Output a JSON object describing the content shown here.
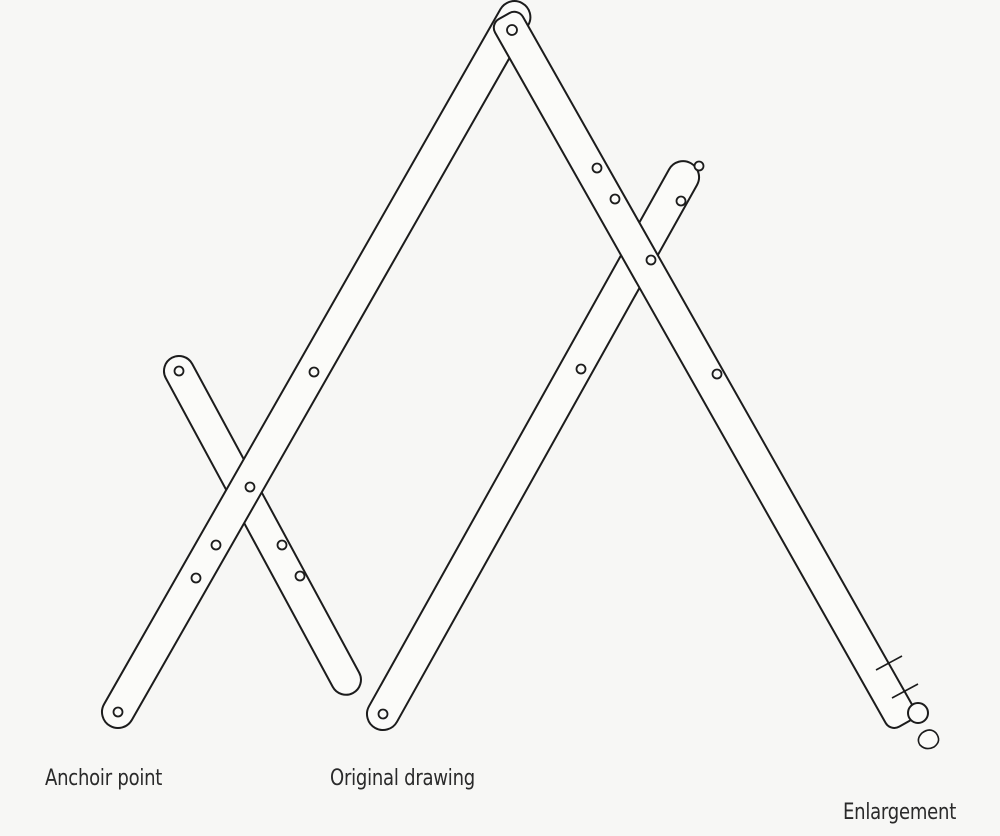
{
  "labels": {
    "anchor": "Anchoir point",
    "original": "Original drawing",
    "enlargement": "Enlargement"
  },
  "colors": {
    "ink": "#1c1c1c",
    "arm_fill": "#fbfbf9",
    "background": "#f7f7f5"
  }
}
